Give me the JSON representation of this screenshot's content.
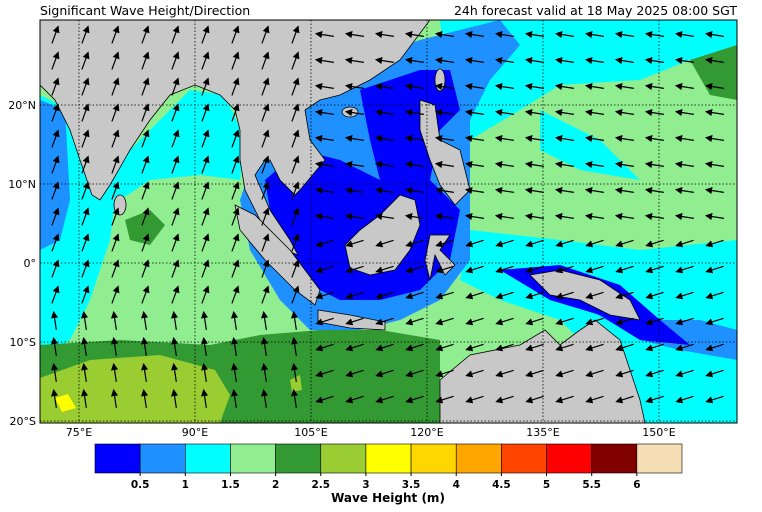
{
  "header": {
    "title": "Significant Wave Height/Direction",
    "valid": "24h forecast valid at 18 May 2025 08:00 SGT"
  },
  "map": {
    "lon_labels": [
      "75°E",
      "90°E",
      "105°E",
      "120°E",
      "135°E",
      "150°E"
    ],
    "lat_labels": [
      "20°N",
      "10°N",
      "0°",
      "10°S",
      "20°S"
    ]
  },
  "colorbar": {
    "colors": [
      "#0000ff",
      "#1e90ff",
      "#00ffff",
      "#90ee90",
      "#339933",
      "#9acd32",
      "#ffff00",
      "#ffd700",
      "#ffa500",
      "#ff4500",
      "#ff0000",
      "#800000",
      "#f5deb3"
    ],
    "ticks": [
      0.5,
      1,
      1.5,
      2,
      2.5,
      3,
      3.5,
      4,
      4.5,
      5,
      5.5,
      6
    ],
    "label": "Wave Height (m)"
  }
}
